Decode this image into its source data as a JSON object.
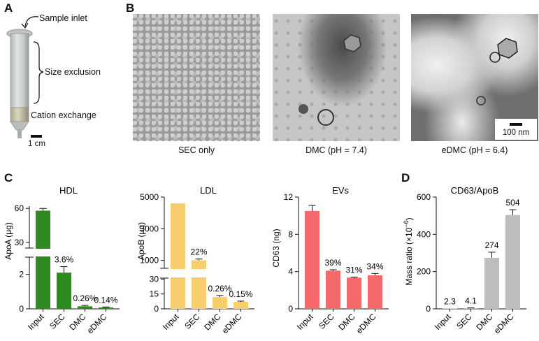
{
  "panel_letters": {
    "a": "A",
    "b": "B",
    "c": "C",
    "d": "D"
  },
  "column": {
    "sample_inlet": "Sample inlet",
    "size_exclusion": "Size exclusion",
    "cation_exchange": "Cation exchange",
    "scale": "1 cm"
  },
  "em": {
    "captions": [
      "SEC only",
      "DMC (pH = 7.4)",
      "eDMC (pH = 6.4)"
    ],
    "scale_bar": "100 nm"
  },
  "colors": {
    "hdl": "#2e8b1f",
    "ldl": "#f7cd6d",
    "evs": "#f46a6a",
    "ratio": "#bdbdbd"
  },
  "chart_data": [
    {
      "type": "bar",
      "title": "HDL",
      "ylabel": "ApoA (μg)",
      "categories": [
        "Input",
        "SEC",
        "DMC",
        "eDMC"
      ],
      "values": [
        58,
        2.1,
        0.15,
        0.08
      ],
      "errors": [
        2,
        0.35,
        0.05,
        0.03
      ],
      "labels": [
        "",
        "3.6%",
        "0.26%",
        "0.14%"
      ],
      "axis_break": true,
      "yticks_lower": [
        "0",
        "2"
      ],
      "yticks_upper": [
        "30",
        "60"
      ]
    },
    {
      "type": "bar",
      "title": "LDL",
      "ylabel": "ApoB (μg)",
      "categories": [
        "Input",
        "SEC",
        "DMC",
        "eDMC"
      ],
      "values": [
        4600,
        1010,
        12,
        7
      ],
      "errors": [
        0,
        80,
        1.5,
        0.8
      ],
      "labels": [
        "",
        "22%",
        "0.26%",
        "0.15%"
      ],
      "axis_break": true,
      "yticks_lower": [
        "0",
        "15",
        "30"
      ],
      "yticks_upper": [
        "1000",
        "3000",
        "5000"
      ]
    },
    {
      "type": "bar",
      "title": "EVs",
      "ylabel": "CD63 (ng)",
      "categories": [
        "Input",
        "SEC",
        "DMC",
        "eDMC"
      ],
      "values": [
        10.5,
        4.1,
        3.35,
        3.6
      ],
      "errors": [
        0.6,
        0.1,
        0.05,
        0.2
      ],
      "labels": [
        "",
        "39%",
        "31%",
        "34%"
      ],
      "ylim": [
        0,
        12
      ],
      "yticks": [
        "0",
        "4",
        "8",
        "12"
      ]
    },
    {
      "type": "bar",
      "title": "CD63/ApoB",
      "ylabel": "Mass ratio (×10",
      "ylabel_exp": "−6",
      "ylabel_close": ")",
      "categories": [
        "Input",
        "SEC",
        "DMC",
        "eDMC"
      ],
      "values": [
        2.3,
        4.1,
        274,
        504
      ],
      "errors": [
        0,
        1,
        30,
        28
      ],
      "labels": [
        "2.3",
        "4.1",
        "274",
        "504"
      ],
      "ylim": [
        0,
        600
      ],
      "yticks": [
        "0",
        "200",
        "400",
        "600"
      ]
    }
  ]
}
